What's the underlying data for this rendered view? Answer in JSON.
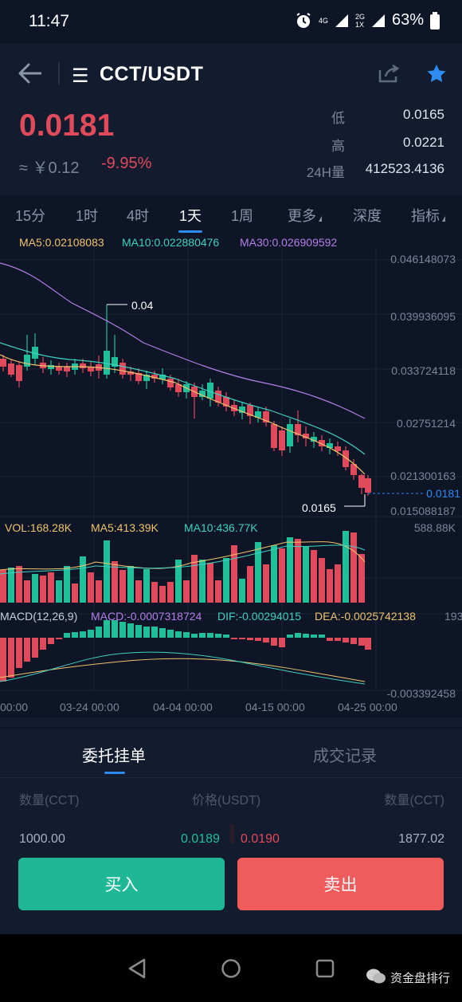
{
  "status_bar": {
    "time": "11:47",
    "network_top": "4G",
    "network_2": "2G",
    "network_3": "1X",
    "battery": "63%"
  },
  "header": {
    "pair": "CCT/USDT",
    "price": "0.0181",
    "cny": "≈ ￥0.12",
    "change": "-9.95%",
    "stats": [
      {
        "label": "低",
        "value": "0.0165"
      },
      {
        "label": "高",
        "value": "0.0221"
      },
      {
        "label": "24H量",
        "value": "412523.4136"
      }
    ]
  },
  "tabs": [
    "15分",
    "1时",
    "4时",
    "1天",
    "1周",
    "更多",
    "深度",
    "指标"
  ],
  "active_tab": "1天",
  "ma_legend": {
    "ma5": "MA5:0.02108083",
    "ma10": "MA10:0.022880476",
    "ma30": "MA30:0.026909592"
  },
  "price_axis": [
    "0.046148073",
    "0.039936095",
    "0.033724118",
    "0.02751214",
    "0.021300163",
    "0.015088187"
  ],
  "last_price_tag": "0.0181",
  "high_marker": "0.04",
  "low_marker": "0.0165",
  "vol_legend": {
    "vol": "VOL:168.28K",
    "ma5": "MA5:413.39K",
    "ma10": "MA10:436.77K",
    "max": "588.88K"
  },
  "macd_legend": {
    "macd": "MACD(12,26,9)",
    "value": "MACD:-0.0007318724",
    "dif": "DIF:-0.00294015",
    "dea": "DEA:-0.0025742138",
    "top_axis": "193",
    "bottom_axis": "-0.003392458"
  },
  "date_axis": [
    "00:00",
    "03-24 00:00",
    "04-04 00:00",
    "04-15 00:00",
    "04-25 00:00"
  ],
  "order_tabs": {
    "left": "委托挂单",
    "right": "成交记录"
  },
  "orderbook": {
    "head_qty_left": "数量(CCT)",
    "head_price": "价格(USDT)",
    "head_qty_right": "数量(CCT)",
    "row": {
      "bid_qty": "1000.00",
      "bid_price": "0.0189",
      "ask_price": "0.0190",
      "ask_qty": "1877.02"
    }
  },
  "actions": {
    "buy": "买入",
    "sell": "卖出"
  },
  "watermark": "资金盘排行",
  "colors": {
    "up": "#1fbf9a",
    "down": "#e14a5a",
    "ma5": "#f0c36b",
    "ma10": "#3fd1c0",
    "ma30": "#b57ee8",
    "accent": "#2e8bf0"
  }
}
